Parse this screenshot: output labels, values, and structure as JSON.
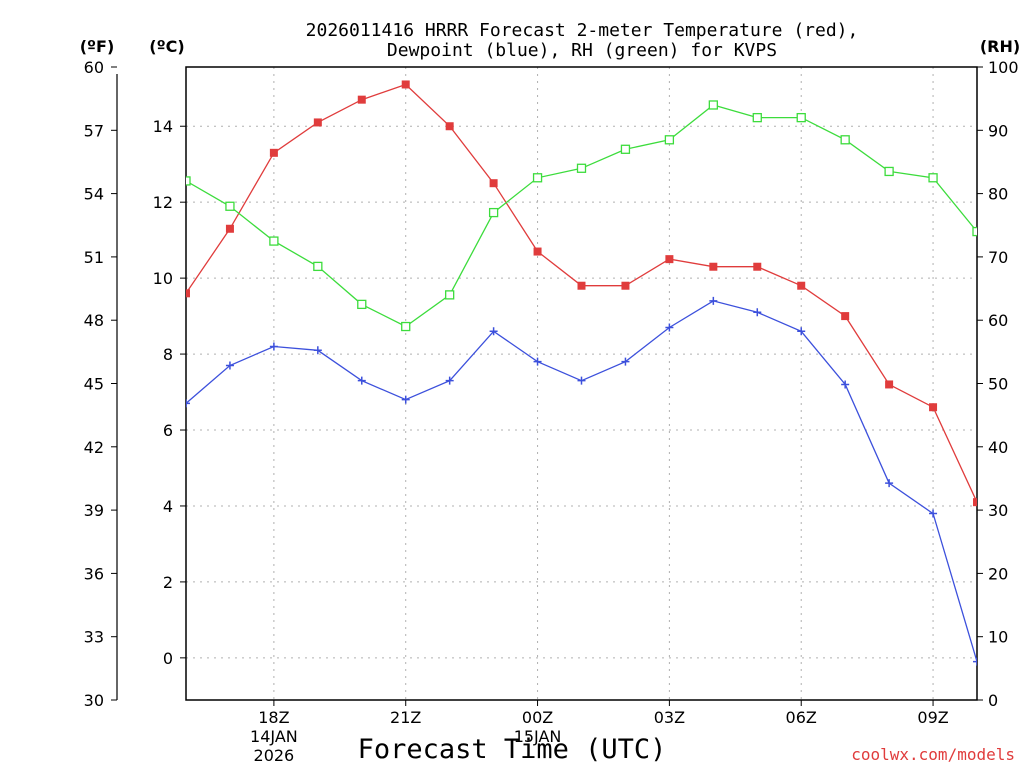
{
  "chart_data": {
    "type": "line",
    "title_line1": "2026011416 HRRR Forecast 2-meter Temperature (red),",
    "title_line2": "Dewpoint (blue), RH (green) for KVPS",
    "xlabel": "Forecast Time (UTC)",
    "credit": "coolwx.com/models",
    "axes": {
      "left_f": {
        "unit": "(ºF)",
        "range": [
          30,
          60
        ],
        "ticks": [
          "30",
          "33",
          "36",
          "39",
          "42",
          "45",
          "48",
          "51",
          "54",
          "57",
          "60"
        ]
      },
      "left_c": {
        "unit": "(ºC)",
        "range": [
          -1.11,
          15.56
        ],
        "ticks": [
          "0",
          "2",
          "4",
          "6",
          "8",
          "10",
          "12",
          "14"
        ]
      },
      "right_rh": {
        "unit": "(RH)",
        "range": [
          0,
          100
        ],
        "ticks": [
          "0",
          "10",
          "20",
          "30",
          "40",
          "50",
          "60",
          "70",
          "80",
          "90",
          "100"
        ]
      }
    },
    "x_hours": [
      16,
      17,
      18,
      19,
      20,
      21,
      22,
      23,
      24,
      25,
      26,
      27,
      28,
      29,
      30,
      31,
      32,
      33,
      34
    ],
    "x_range": [
      16,
      34
    ],
    "x_ticks": [
      {
        "hour": 18,
        "label": "18Z",
        "sub1": "14JAN",
        "sub2": "2026"
      },
      {
        "hour": 21,
        "label": "21Z"
      },
      {
        "hour": 24,
        "label": "00Z",
        "sub1": "15JAN"
      },
      {
        "hour": 27,
        "label": "03Z"
      },
      {
        "hour": 30,
        "label": "06Z"
      },
      {
        "hour": 33,
        "label": "09Z"
      }
    ],
    "series": [
      {
        "name": "2-meter Temperature",
        "unit": "C",
        "color": "#e03c3c",
        "marker": "filled-square",
        "values": [
          9.6,
          11.3,
          13.3,
          14.1,
          14.7,
          15.1,
          14.0,
          12.5,
          10.7,
          9.8,
          9.8,
          10.5,
          10.3,
          10.3,
          9.8,
          9.0,
          7.2,
          6.6,
          4.1
        ]
      },
      {
        "name": "Dewpoint",
        "unit": "C",
        "color": "#3c50dc",
        "marker": "plus",
        "values": [
          6.7,
          7.7,
          8.2,
          8.1,
          7.3,
          6.8,
          7.3,
          8.6,
          7.8,
          7.3,
          7.8,
          8.7,
          9.4,
          9.1,
          8.6,
          7.2,
          4.6,
          3.8,
          -0.1
        ]
      },
      {
        "name": "RH",
        "unit": "%",
        "color": "#3cdc3c",
        "marker": "open-square",
        "values": [
          82,
          78,
          72.5,
          68.5,
          62.5,
          59,
          64,
          77,
          82.5,
          84,
          87,
          88.5,
          94,
          92,
          92,
          88.5,
          83.5,
          82.5,
          74
        ]
      }
    ]
  }
}
